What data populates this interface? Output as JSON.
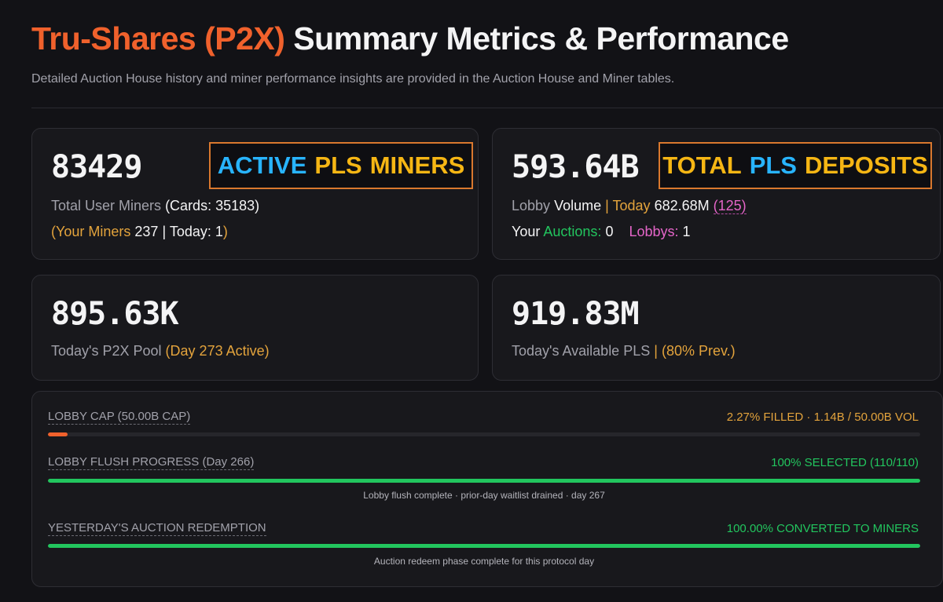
{
  "header": {
    "title_accent": "Tru-Shares (P2X)",
    "title_rest": "Summary Metrics & Performance",
    "subtitle": "Detailed Auction House history and miner performance insights are provided in the Auction House and Miner tables."
  },
  "cards": {
    "miners": {
      "value": "83429",
      "label": "Total User Miners",
      "cards_text": "(Cards: 35183)",
      "your_open": "(Your Miners",
      "your_count": "237",
      "today_text": "Today: 1",
      "close_paren": ")",
      "tag_word1": "ACTIVE",
      "tag_word2": "PLS",
      "tag_word3": "MINERS"
    },
    "deposits": {
      "value": "593.64B",
      "label_prefix": "Lobby",
      "label_main": "Volume",
      "today_label": "Today",
      "today_value": "682.68M",
      "today_count": "(125)",
      "your_label": "Your",
      "auctions_label": "Auctions:",
      "auctions_value": "0",
      "lobbys_label": "Lobbys:",
      "lobbys_value": "1",
      "tag_word1": "TOTAL",
      "tag_word2": "PLS",
      "tag_word3": "DEPOSITS"
    },
    "pool": {
      "value": "895.63K",
      "label": "Today's P2X Pool",
      "status": "(Day 273 Active)"
    },
    "available": {
      "value": "919.83M",
      "label": "Today's Available PLS",
      "prev": "(80% Prev.)"
    }
  },
  "progress": {
    "lobby_cap": {
      "label": "LOBBY CAP (50.00B CAP)",
      "value_text": "2.27% FILLED · 1.14B / 50.00B VOL",
      "fraction": 0.0227
    },
    "flush": {
      "label": "LOBBY FLUSH PROGRESS (Day 266)",
      "value_text": "100% SELECTED (110/110)",
      "fraction": 1.0,
      "note": "Lobby flush complete · prior-day waitlist drained · day 267"
    },
    "redemption": {
      "label": "YESTERDAY'S AUCTION REDEMPTION",
      "value_text": "100.00% CONVERTED TO MINERS",
      "fraction": 1.0,
      "note": "Auction redeem phase complete for this protocol day"
    }
  },
  "colors": {
    "accent_orange": "#f0612c",
    "amber": "#e3a33c",
    "green": "#22c55e",
    "pink": "#e465c8",
    "tag_yellow": "#f6b614",
    "tag_blue": "#28b4ff"
  }
}
